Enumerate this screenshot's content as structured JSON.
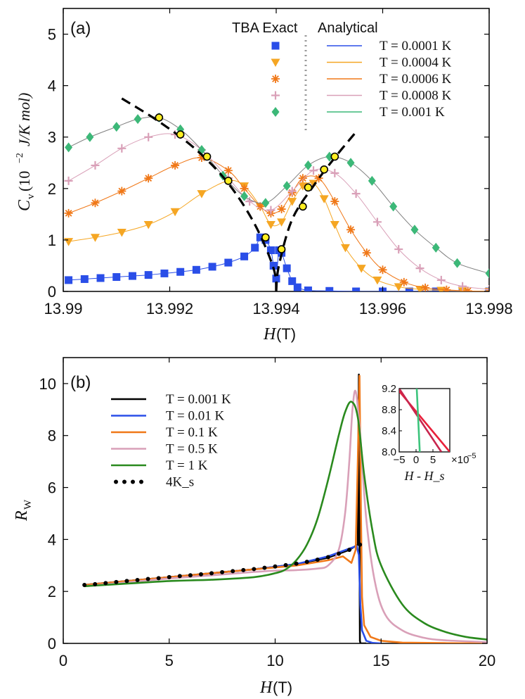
{
  "chart_data": [
    {
      "panel": "(a)",
      "type": "scatter",
      "xlabel": "H(T)",
      "ylabel": "C_v (10^-2 J/K mol)",
      "xlim": [
        13.99,
        13.998
      ],
      "ylim": [
        0,
        5.5
      ],
      "xticks": [
        13.99,
        13.992,
        13.994,
        13.996,
        13.998
      ],
      "xtick_labels": [
        "13.99",
        "13.992",
        "13.994",
        "13.996",
        "13.998"
      ],
      "yticks": [
        0,
        1,
        2,
        3,
        4,
        5
      ],
      "ytick_labels": [
        "0",
        "1",
        "2",
        "3",
        "4",
        "5"
      ],
      "legend_headers": {
        "left": "TBA Exact",
        "right": "Analytical"
      },
      "series": [
        {
          "name": "T = 0.0001 K",
          "color": "#2a4ee8",
          "marker": "square",
          "x": [
            13.9901,
            13.9904,
            13.9907,
            13.991,
            13.9913,
            13.9916,
            13.9919,
            13.9922,
            13.9925,
            13.9928,
            13.9931,
            13.9934,
            13.9936,
            13.9937,
            13.9938,
            13.9939,
            13.99395,
            13.994,
            13.99405,
            13.9941,
            13.9942,
            13.9943,
            13.9944,
            13.9946,
            13.995,
            13.9955,
            13.996,
            13.9965,
            13.997,
            13.9975,
            13.998
          ],
          "y": [
            0.22,
            0.24,
            0.26,
            0.28,
            0.3,
            0.32,
            0.35,
            0.38,
            0.42,
            0.48,
            0.56,
            0.68,
            0.85,
            1.05,
            1.0,
            0.8,
            0.5,
            0.25,
            0.8,
            0.75,
            0.45,
            0.2,
            0.08,
            0.02,
            0.01,
            0.0,
            0.0,
            0.0,
            0.0,
            0.0,
            0.0
          ]
        },
        {
          "name": "T = 0.0004 K",
          "color": "#f5a623",
          "marker": "triangle-down",
          "x": [
            13.9901,
            13.9906,
            13.9911,
            13.9916,
            13.9921,
            13.9926,
            13.9931,
            13.9934,
            13.9937,
            13.9939,
            13.9941,
            13.9943,
            13.9945,
            13.9947,
            13.9949,
            13.9951,
            13.9953,
            13.9956,
            13.9959,
            13.9963,
            13.9967,
            13.9971,
            13.9975,
            13.998
          ],
          "y": [
            0.97,
            1.05,
            1.15,
            1.3,
            1.55,
            1.9,
            2.15,
            2.05,
            1.65,
            1.3,
            1.35,
            1.75,
            2.05,
            2.1,
            1.8,
            1.3,
            0.85,
            0.45,
            0.22,
            0.09,
            0.04,
            0.02,
            0.01,
            0.0
          ]
        },
        {
          "name": "T = 0.0006 K",
          "color": "#f07818",
          "marker": "asterisk",
          "x": [
            13.9901,
            13.9906,
            13.9911,
            13.9916,
            13.9921,
            13.9926,
            13.9931,
            13.9934,
            13.9937,
            13.9939,
            13.9941,
            13.9943,
            13.9945,
            13.9948,
            13.9951,
            13.9954,
            13.9957,
            13.996,
            13.9964,
            13.9968,
            13.9972,
            13.9976,
            13.998
          ],
          "y": [
            1.52,
            1.72,
            1.95,
            2.2,
            2.45,
            2.6,
            2.35,
            2.0,
            1.65,
            1.52,
            1.6,
            1.92,
            2.2,
            2.2,
            1.75,
            1.2,
            0.75,
            0.42,
            0.18,
            0.07,
            0.03,
            0.01,
            0.0
          ]
        },
        {
          "name": "T = 0.0008 K",
          "color": "#d9a0b8",
          "marker": "plus",
          "x": [
            13.9901,
            13.9906,
            13.9911,
            13.9916,
            13.9921,
            13.9926,
            13.9931,
            13.9935,
            13.9939,
            13.9943,
            13.9947,
            13.9951,
            13.9955,
            13.9959,
            13.9963,
            13.9967,
            13.9971,
            13.9975,
            13.998
          ],
          "y": [
            2.15,
            2.45,
            2.78,
            3.0,
            3.05,
            2.75,
            2.2,
            1.75,
            1.58,
            1.95,
            2.35,
            2.3,
            1.9,
            1.35,
            0.82,
            0.45,
            0.22,
            0.1,
            0.04
          ]
        },
        {
          "name": "T = 0.001 K",
          "color": "#3cb878",
          "marker": "diamond",
          "x": [
            13.9901,
            13.9905,
            13.991,
            13.9914,
            13.9918,
            13.9922,
            13.9926,
            13.993,
            13.9934,
            13.9938,
            13.9942,
            13.9946,
            13.995,
            13.9954,
            13.9958,
            13.9962,
            13.9966,
            13.997,
            13.9974,
            13.998
          ],
          "y": [
            2.8,
            3.0,
            3.2,
            3.35,
            3.38,
            3.15,
            2.75,
            2.25,
            1.85,
            1.72,
            2.05,
            2.45,
            2.62,
            2.5,
            2.15,
            1.65,
            1.2,
            0.85,
            0.55,
            0.35
          ]
        }
      ],
      "dashed_asymptote": {
        "color": "#000000",
        "left": {
          "x": [
            13.9911,
            13.9918,
            13.9925,
            13.9931,
            13.9936,
            13.99395,
            13.994
          ],
          "y": [
            3.75,
            3.3,
            2.75,
            2.1,
            1.3,
            0.45,
            0.0
          ]
        },
        "right": {
          "x": [
            13.994,
            13.99405,
            13.9943,
            13.9947,
            13.9951,
            13.9955
          ],
          "y": [
            0.0,
            0.5,
            1.4,
            2.05,
            2.6,
            3.1
          ]
        }
      },
      "yellow_points": {
        "x": [
          13.9918,
          13.9922,
          13.9927,
          13.9931,
          13.9938,
          13.9941,
          13.9945,
          13.9946,
          13.9949,
          13.9951
        ],
        "y": [
          3.38,
          3.05,
          2.62,
          2.15,
          1.05,
          0.82,
          1.65,
          2.02,
          2.37,
          2.62
        ]
      }
    },
    {
      "panel": "(b)",
      "type": "line",
      "xlabel": "H(T)",
      "ylabel": "R_W",
      "xlim": [
        0,
        20
      ],
      "ylim": [
        0,
        11
      ],
      "xticks": [
        0,
        5,
        10,
        15,
        20
      ],
      "xtick_labels": [
        "0",
        "5",
        "10",
        "15",
        "20"
      ],
      "yticks": [
        0,
        2,
        4,
        6,
        8,
        10
      ],
      "ytick_labels": [
        "0",
        "2",
        "4",
        "6",
        "8",
        "10"
      ],
      "series": [
        {
          "name": "T = 0.001 K",
          "color": "#000000",
          "x": [
            1,
            3,
            5,
            7,
            9,
            11,
            12.5,
            13.5,
            13.9,
            13.95,
            13.98,
            14.0,
            14.02,
            14.05,
            14.1,
            14.3
          ],
          "y": [
            2.25,
            2.4,
            2.55,
            2.7,
            2.85,
            3.05,
            3.3,
            3.6,
            3.8,
            10.35,
            4.0,
            0.1,
            0.02,
            0.0,
            0.0,
            0.0
          ]
        },
        {
          "name": "T = 0.01 K",
          "color": "#2a4ee8",
          "x": [
            1,
            3,
            5,
            7,
            9,
            11,
            12.5,
            13.5,
            13.85,
            13.95,
            14.02,
            14.1,
            14.3,
            14.6,
            15
          ],
          "y": [
            2.25,
            2.4,
            2.55,
            2.7,
            2.85,
            3.05,
            3.35,
            3.65,
            3.75,
            3.4,
            1.5,
            0.5,
            0.1,
            0.02,
            0.0
          ]
        },
        {
          "name": "T = 0.1 K",
          "color": "#f07818",
          "x": [
            1,
            3,
            5,
            7,
            9,
            11,
            12.5,
            13.2,
            13.6,
            13.8,
            13.9,
            13.98,
            14.05,
            14.1,
            14.2,
            14.5,
            15,
            16,
            18,
            20
          ],
          "y": [
            2.25,
            2.4,
            2.55,
            2.7,
            2.85,
            3.0,
            3.2,
            3.35,
            3.1,
            3.6,
            7.0,
            10.3,
            5.0,
            1.8,
            0.7,
            0.25,
            0.1,
            0.03,
            0.01,
            0.0
          ]
        },
        {
          "name": "T = 0.5 K",
          "color": "#d9a0b8",
          "x": [
            1,
            3,
            5,
            7,
            9,
            10,
            11,
            12,
            12.5,
            13,
            13.3,
            13.5,
            13.65,
            13.8,
            14.0,
            14.3,
            14.7,
            15.2,
            16,
            17,
            18,
            20
          ],
          "y": [
            2.2,
            2.35,
            2.5,
            2.62,
            2.75,
            2.8,
            2.82,
            2.88,
            3.0,
            3.6,
            5.0,
            7.0,
            9.0,
            9.7,
            8.2,
            4.8,
            2.4,
            1.1,
            0.5,
            0.22,
            0.12,
            0.05
          ]
        },
        {
          "name": "T = 1 K",
          "color": "#2a8a1e",
          "x": [
            1,
            3,
            5,
            7,
            9,
            10,
            10.5,
            11,
            11.5,
            12,
            12.5,
            13,
            13.3,
            13.6,
            13.9,
            14.2,
            14.6,
            15,
            16,
            17,
            18,
            19,
            20
          ],
          "y": [
            2.2,
            2.3,
            2.4,
            2.45,
            2.55,
            2.7,
            2.85,
            3.2,
            3.8,
            4.8,
            6.3,
            8.0,
            8.9,
            9.3,
            8.7,
            6.5,
            4.3,
            3.0,
            1.5,
            0.8,
            0.45,
            0.25,
            0.15
          ]
        },
        {
          "name": "4K_s",
          "color": "#000000",
          "style": "dotted",
          "x": [
            1,
            1.5,
            2,
            2.5,
            3,
            3.5,
            4,
            4.5,
            5,
            5.5,
            6,
            6.5,
            7,
            7.5,
            8,
            8.5,
            9,
            9.5,
            10,
            10.5,
            11,
            11.5,
            12,
            12.5,
            13,
            13.5,
            14
          ],
          "y": [
            2.25,
            2.28,
            2.32,
            2.36,
            2.4,
            2.44,
            2.48,
            2.51,
            2.55,
            2.59,
            2.62,
            2.66,
            2.7,
            2.74,
            2.78,
            2.82,
            2.86,
            2.91,
            2.96,
            3.01,
            3.07,
            3.14,
            3.22,
            3.32,
            3.45,
            3.6,
            3.8
          ]
        }
      ],
      "inset": {
        "xlabel": "H - H_s",
        "xlim": [
          -5,
          10
        ],
        "ylim": [
          8.0,
          9.2
        ],
        "xticks": [
          -5,
          0,
          5
        ],
        "xtick_labels": [
          "−5",
          "0",
          "5"
        ],
        "yticks": [
          8.0,
          8.4,
          8.8,
          9.2
        ],
        "ytick_labels": [
          "8.0",
          "8.4",
          "8.8",
          "9.2"
        ],
        "exponent_label": "×10",
        "exponent_power": "−5",
        "lines": [
          {
            "color": "#e8203a",
            "x": [
              -5,
              10
            ],
            "y": [
              9.15,
              8.0
            ]
          },
          {
            "color": "#c8264e",
            "x": [
              -5,
              7.5
            ],
            "y": [
              9.2,
              8.0
            ]
          },
          {
            "color": "#3cc47c",
            "x": [
              0.2,
              1.1
            ],
            "y": [
              9.2,
              8.0
            ]
          }
        ]
      }
    }
  ],
  "panel_a_axis_label": {
    "x_italic": "H",
    "x_rest": "(T)",
    "y_italic": "C",
    "y_sub": "v",
    "y_rest": "(10",
    "y_exp": "−2",
    "y_units": "J/K mol)"
  },
  "panel_b_axis_label": {
    "x_italic": "H",
    "x_rest": "(T)",
    "y_italic": "R",
    "y_sub": "W"
  }
}
